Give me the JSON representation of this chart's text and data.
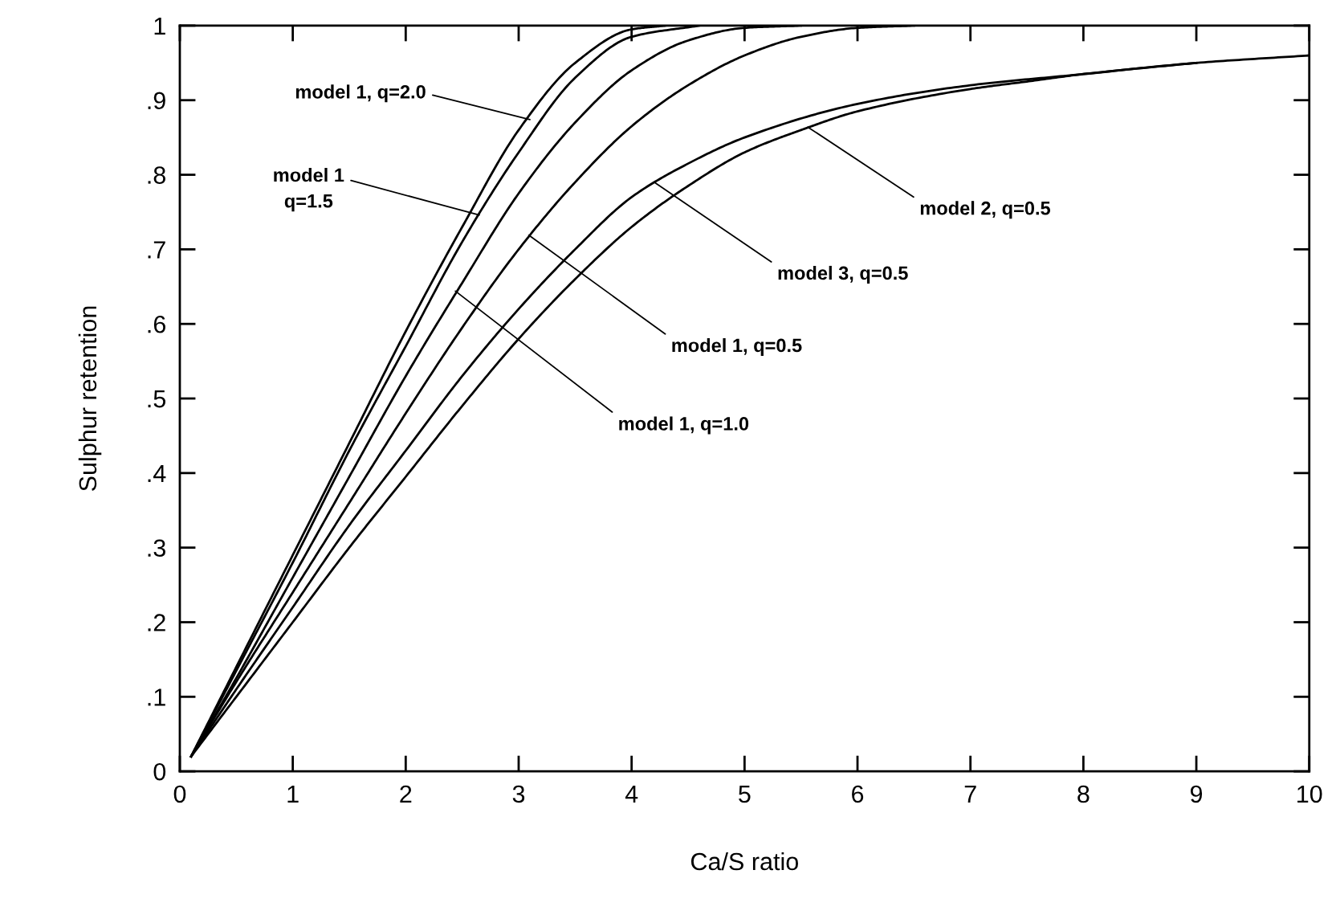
{
  "chart_data": {
    "type": "line",
    "xlabel": "Ca/S ratio",
    "ylabel": "Sulphur retention",
    "xlim": [
      0,
      10
    ],
    "ylim": [
      0,
      1
    ],
    "xticks": [
      0,
      1,
      2,
      3,
      4,
      5,
      6,
      7,
      8,
      9,
      10
    ],
    "yticks": [
      0,
      {
        "value": 0.1,
        "label": ".1"
      },
      {
        "value": 0.2,
        "label": ".2"
      },
      {
        "value": 0.3,
        "label": ".3"
      },
      {
        "value": 0.4,
        "label": ".4"
      },
      {
        "value": 0.5,
        "label": ".5"
      },
      {
        "value": 0.6,
        "label": ".6"
      },
      {
        "value": 0.7,
        "label": ".7"
      },
      {
        "value": 0.8,
        "label": ".8"
      },
      {
        "value": 0.9,
        "label": ".9"
      },
      1
    ],
    "grid": false,
    "legend": false,
    "marker": "none",
    "line_style": "solid",
    "series": [
      {
        "color": "#000000",
        "x": [
          0.1,
          0.5,
          1,
          1.5,
          2,
          2.5,
          3,
          3.5,
          4,
          4.3
        ],
        "values": [
          0.02,
          0.14,
          0.29,
          0.44,
          0.59,
          0.73,
          0.86,
          0.95,
          0.995,
          1
        ]
      },
      {
        "color": "#000000",
        "x": [
          0.1,
          0.5,
          1,
          1.5,
          2,
          2.5,
          3,
          3.5,
          4,
          4.6
        ],
        "values": [
          0.02,
          0.135,
          0.28,
          0.43,
          0.57,
          0.71,
          0.83,
          0.93,
          0.985,
          1
        ]
      },
      {
        "color": "#000000",
        "x": [
          0.1,
          0.5,
          1,
          1.5,
          2,
          2.5,
          3,
          3.5,
          4,
          4.5,
          5,
          5.5
        ],
        "values": [
          0.02,
          0.125,
          0.26,
          0.395,
          0.53,
          0.655,
          0.775,
          0.87,
          0.94,
          0.98,
          0.997,
          1
        ]
      },
      {
        "color": "#000000",
        "x": [
          0.1,
          0.5,
          1,
          1.5,
          2,
          2.5,
          3,
          3.5,
          4,
          4.5,
          5,
          5.5,
          6,
          6.5
        ],
        "values": [
          0.02,
          0.12,
          0.24,
          0.36,
          0.48,
          0.595,
          0.7,
          0.79,
          0.865,
          0.92,
          0.96,
          0.985,
          0.997,
          1
        ]
      },
      {
        "color": "#000000",
        "x": [
          0.1,
          0.5,
          1,
          1.5,
          2,
          2.5,
          3,
          3.5,
          4,
          4.5,
          5,
          6,
          7,
          8,
          9,
          10
        ],
        "values": [
          0.02,
          0.11,
          0.22,
          0.33,
          0.43,
          0.53,
          0.62,
          0.7,
          0.77,
          0.815,
          0.85,
          0.895,
          0.92,
          0.935,
          0.95,
          0.96
        ]
      },
      {
        "color": "#000000",
        "x": [
          0.1,
          0.5,
          1,
          1.5,
          2,
          2.5,
          3,
          3.5,
          4,
          4.5,
          5,
          5.5,
          6,
          7,
          7.5,
          8,
          9
        ],
        "values": [
          0.02,
          0.1,
          0.2,
          0.3,
          0.395,
          0.49,
          0.58,
          0.66,
          0.73,
          0.785,
          0.83,
          0.86,
          0.885,
          0.915,
          0.925,
          0.935,
          0.95
        ]
      }
    ],
    "annotations": [
      {
        "text": "model 1, q=2.0",
        "x": 3.1,
        "y": 0.874
      },
      {
        "text": "model 1\nq=1.5",
        "x": 2.65,
        "y": 0.746
      },
      {
        "text": "model 1, q=0.5",
        "x": 3.09,
        "y": 0.719
      },
      {
        "text": "model 1, q=1.0",
        "x": 2.44,
        "y": 0.644
      },
      {
        "text": "model 3, q=0.5",
        "x": 4.2,
        "y": 0.79
      },
      {
        "text": "model 2, q=0.5",
        "x": 5.56,
        "y": 0.864
      }
    ]
  }
}
